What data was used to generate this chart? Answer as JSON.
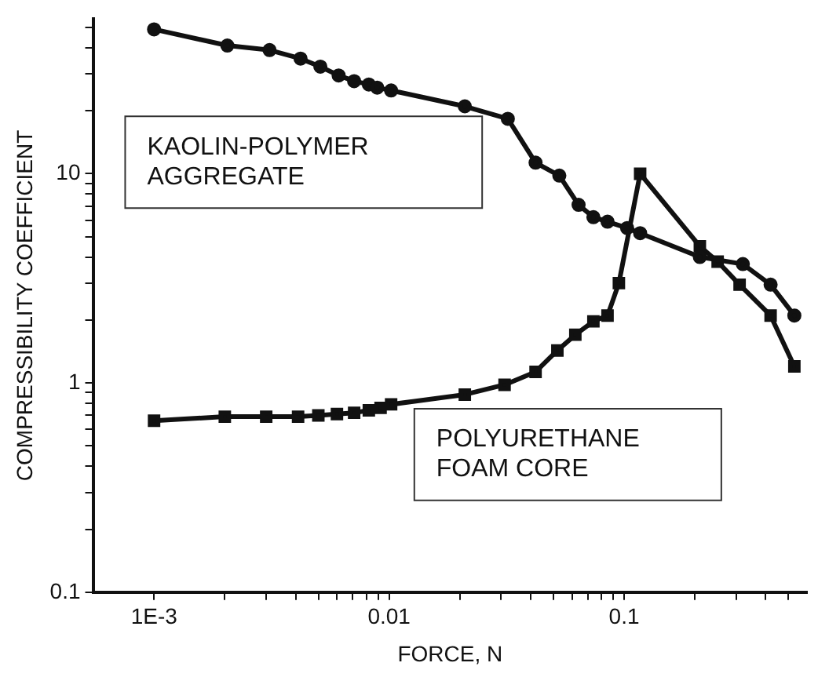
{
  "chart_data": {
    "type": "line",
    "xlabel": "FORCE, N",
    "ylabel": "COMPRESSIBILITY COEFFICIENT",
    "log": "xy",
    "grid": false,
    "legend": false,
    "xlim": [
      0.00055,
      0.6
    ],
    "ylim": [
      0.1,
      55
    ],
    "xticks": [
      {
        "value": 0.001,
        "label": "1E-3"
      },
      {
        "value": 0.002,
        "label": null
      },
      {
        "value": 0.003,
        "label": null
      },
      {
        "value": 0.004,
        "label": null
      },
      {
        "value": 0.005,
        "label": null
      },
      {
        "value": 0.006,
        "label": null
      },
      {
        "value": 0.007,
        "label": null
      },
      {
        "value": 0.008,
        "label": null
      },
      {
        "value": 0.009,
        "label": null
      },
      0.01,
      {
        "value": 0.02,
        "label": null
      },
      {
        "value": 0.03,
        "label": null
      },
      {
        "value": 0.04,
        "label": null
      },
      {
        "value": 0.05,
        "label": null
      },
      {
        "value": 0.06,
        "label": null
      },
      {
        "value": 0.07,
        "label": null
      },
      {
        "value": 0.08,
        "label": null
      },
      {
        "value": 0.09,
        "label": null
      },
      0.1,
      {
        "value": 0.2,
        "label": null
      },
      {
        "value": 0.3,
        "label": null
      },
      {
        "value": 0.4,
        "label": null
      },
      {
        "value": 0.5,
        "label": null
      }
    ],
    "yticks": [
      0.1,
      {
        "value": 0.2,
        "label": null
      },
      {
        "value": 0.3,
        "label": null
      },
      {
        "value": 0.4,
        "label": null
      },
      {
        "value": 0.5,
        "label": null
      },
      {
        "value": 0.6,
        "label": null
      },
      {
        "value": 0.7,
        "label": null
      },
      {
        "value": 0.8,
        "label": null
      },
      {
        "value": 0.9,
        "label": null
      },
      1,
      {
        "value": 2,
        "label": null
      },
      {
        "value": 3,
        "label": null
      },
      {
        "value": 4,
        "label": null
      },
      {
        "value": 5,
        "label": null
      },
      {
        "value": 6,
        "label": null
      },
      {
        "value": 7,
        "label": null
      },
      {
        "value": 8,
        "label": null
      },
      {
        "value": 9,
        "label": null
      },
      10,
      {
        "value": 20,
        "label": null
      },
      {
        "value": 30,
        "label": null
      },
      {
        "value": 40,
        "label": null
      },
      {
        "value": 50,
        "label": null
      }
    ],
    "series": [
      {
        "name": "KAOLIN-POLYMER AGGREGATE",
        "color": "#111111",
        "marker": "circle",
        "x": [
          0.001,
          0.00205,
          0.0031,
          0.0042,
          0.0051,
          0.0061,
          0.0071,
          0.0082,
          0.0089,
          0.0102,
          0.021,
          0.032,
          0.042,
          0.053,
          0.064,
          0.074,
          0.085,
          0.103,
          0.117,
          0.21,
          0.32,
          0.42,
          0.53
        ],
        "values": [
          49,
          41,
          39,
          35.5,
          32.5,
          29.5,
          27.7,
          26.7,
          25.8,
          25,
          21,
          18.3,
          11.3,
          9.8,
          7.1,
          6.2,
          5.9,
          5.5,
          5.2,
          4.0,
          3.7,
          2.95,
          2.1
        ]
      },
      {
        "name": "POLYURETHANE FOAM CORE",
        "color": "#111111",
        "marker": "square",
        "x": [
          0.001,
          0.002,
          0.003,
          0.0041,
          0.005,
          0.006,
          0.0071,
          0.0082,
          0.0092,
          0.0102,
          0.021,
          0.031,
          0.042,
          0.052,
          0.062,
          0.074,
          0.085,
          0.095,
          0.117,
          0.21,
          0.25,
          0.31,
          0.42,
          0.53
        ],
        "values": [
          0.66,
          0.69,
          0.69,
          0.69,
          0.7,
          0.71,
          0.72,
          0.74,
          0.76,
          0.79,
          0.88,
          0.98,
          1.13,
          1.43,
          1.7,
          1.97,
          2.1,
          3.0,
          10,
          4.5,
          3.8,
          2.95,
          2.1,
          1.2
        ]
      }
    ]
  }
}
